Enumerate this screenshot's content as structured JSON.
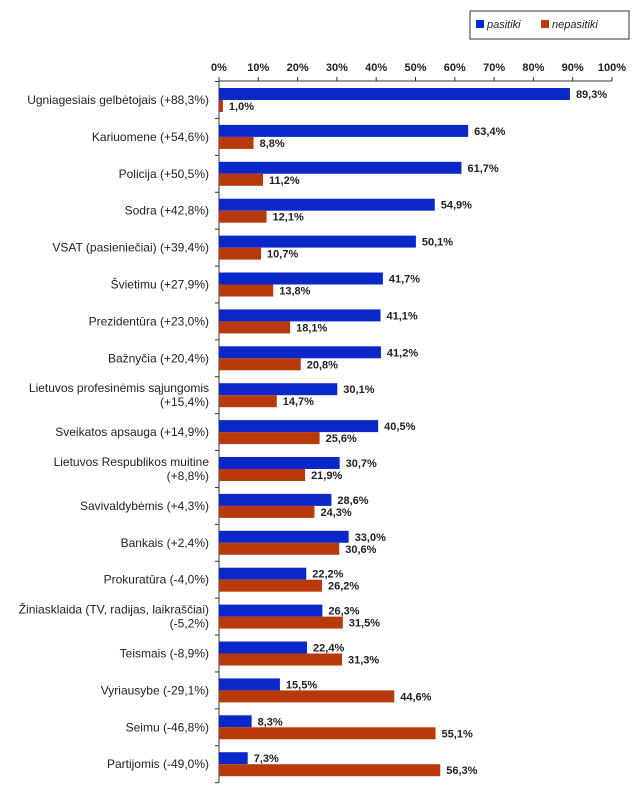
{
  "chart_data": {
    "type": "bar",
    "orientation": "horizontal",
    "categories": [
      "Ugniagesiais gelbėtojais (+88,3%)",
      "Kariuomene (+54,6%)",
      "Policija (+50,5%)",
      "Sodra (+42,8%)",
      "VSAT (pasieniečiai) (+39,4%)",
      "Švietimu (+27,9%)",
      "Prezidentūra (+23,0%)",
      "Bažnyčia (+20,4%)",
      "Lietuvos profesinėmis sąjungomis (+15,4%)",
      "Sveikatos apsauga (+14,9%)",
      "Lietuvos Respublikos muitine (+8,8%)",
      "Savivaldybėmis (+4,3%)",
      "Bankais (+2,4%)",
      "Prokuratūra (-4,0%)",
      "Žiniasklaida (TV, radijas, laikraščiai) (-5,2%)",
      "Teismais (-8,9%)",
      "Vyriausybe (-29,1%)",
      "Seimu (-46,8%)",
      "Partijomis (-49,0%)"
    ],
    "category_lines": [
      [
        "Ugniagesiais gelbėtojais (+88,3%)"
      ],
      [
        "Kariuomene (+54,6%)"
      ],
      [
        "Policija (+50,5%)"
      ],
      [
        "Sodra (+42,8%)"
      ],
      [
        "VSAT (pasieniečiai) (+39,4%)"
      ],
      [
        "Švietimu (+27,9%)"
      ],
      [
        "Prezidentūra (+23,0%)"
      ],
      [
        "Bažnyčia (+20,4%)"
      ],
      [
        "Lietuvos profesinėmis sąjungomis",
        "(+15,4%)"
      ],
      [
        "Sveikatos apsauga (+14,9%)"
      ],
      [
        "Lietuvos Respublikos muitine",
        "(+8,8%)"
      ],
      [
        "Savivaldybėmis (+4,3%)"
      ],
      [
        "Bankais (+2,4%)"
      ],
      [
        "Prokuratūra (-4,0%)"
      ],
      [
        "Žiniasklaida (TV, radijas, laikraščiai)",
        "(-5,2%)"
      ],
      [
        "Teismais (-8,9%)"
      ],
      [
        "Vyriausybe (-29,1%)"
      ],
      [
        "Seimu (-46,8%)"
      ],
      [
        "Partijomis (-49,0%)"
      ]
    ],
    "series": [
      {
        "name": "pasitiki",
        "color": "#0a27c8",
        "values": [
          89.3,
          63.4,
          61.7,
          54.9,
          50.1,
          41.7,
          41.1,
          41.2,
          30.1,
          40.5,
          30.7,
          28.6,
          33.0,
          22.2,
          26.3,
          22.4,
          15.5,
          8.3,
          7.3
        ],
        "labels": [
          "89,3%",
          "63,4%",
          "61,7%",
          "54,9%",
          "50,1%",
          "41,7%",
          "41,1%",
          "41,2%",
          "30,1%",
          "40,5%",
          "30,7%",
          "28,6%",
          "33,0%",
          "22,2%",
          "26,3%",
          "22,4%",
          "15,5%",
          "8,3%",
          "7,3%"
        ]
      },
      {
        "name": "nepasitiki",
        "color": "#b83a0c",
        "values": [
          1.0,
          8.8,
          11.2,
          12.1,
          10.7,
          13.8,
          18.1,
          20.8,
          14.7,
          25.6,
          21.9,
          24.3,
          30.6,
          26.2,
          31.5,
          31.3,
          44.6,
          55.1,
          56.3
        ],
        "labels": [
          "1,0%",
          "8,8%",
          "11,2%",
          "12,1%",
          "10,7%",
          "13,8%",
          "18,1%",
          "20,8%",
          "14,7%",
          "25,6%",
          "21,9%",
          "24,3%",
          "30,6%",
          "26,2%",
          "31,5%",
          "31,3%",
          "44,6%",
          "55,1%",
          "56,3%"
        ]
      }
    ],
    "xlim": [
      0,
      100
    ],
    "x_ticks": [
      "0%",
      "10%",
      "20%",
      "30%",
      "40%",
      "50%",
      "60%",
      "70%",
      "80%",
      "90%",
      "100%"
    ],
    "x_axis_position": "top",
    "grid": false,
    "legend_position": "top-right",
    "title": "",
    "xlabel": "",
    "ylabel": ""
  }
}
